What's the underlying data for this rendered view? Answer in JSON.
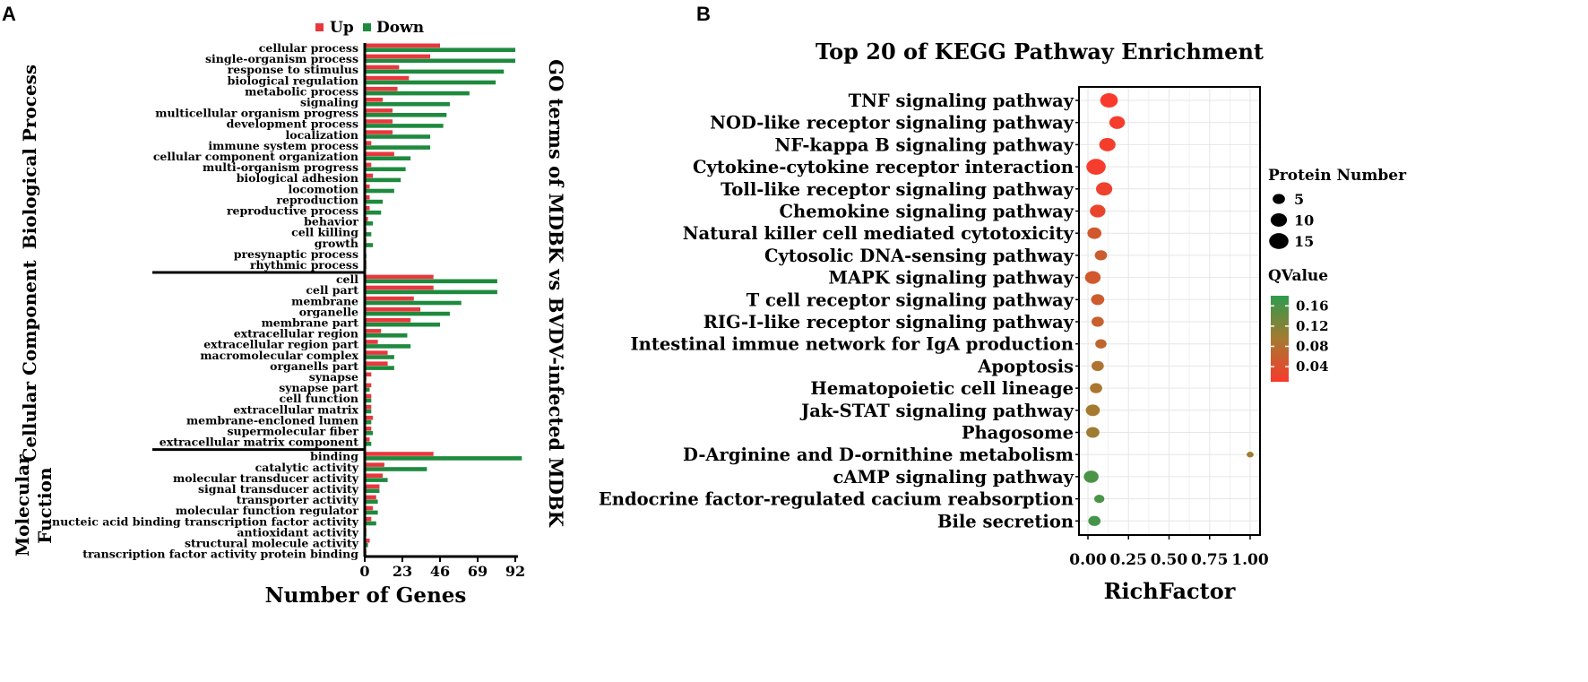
{
  "panel_labels": {
    "a": "A",
    "b": "B"
  },
  "colors": {
    "up": "#e8383d",
    "down": "#1e8a3e",
    "q_low": "#f83a2c",
    "q_mid": "#a57a30",
    "q_high": "#2e9b4e",
    "grid": "#e6e6e6"
  },
  "chart_data": [
    {
      "type": "bar",
      "orientation": "horizontal",
      "title": "GO terms of MDBK vs BVDV-infected MDBK",
      "xlabel": "Number of Genes",
      "xlim": [
        0,
        92
      ],
      "xticks": [
        "0",
        "23",
        "46",
        "69",
        "92"
      ],
      "legend": {
        "up": "Up",
        "down": "Down",
        "position": "top"
      },
      "groups": [
        {
          "name": "Biological Process",
          "categories": [
            "cellular process",
            "single-organism process",
            "response to stimulus",
            "biological regulation",
            "metabolic process",
            "signaling",
            "multicellular organism progress",
            "development process",
            "localization",
            "immune system process",
            "cellular component organization",
            "multi-organism progress",
            "biological adhesion",
            "locomotion",
            "reproduction",
            "reproductive process",
            "behavior",
            "cell killing",
            "growth",
            "presynaptic process",
            "rhythmic process"
          ],
          "up": [
            46,
            40,
            21,
            27,
            20,
            11,
            17,
            17,
            17,
            4,
            18,
            4,
            5,
            3,
            3,
            3,
            2,
            1,
            1,
            0,
            1
          ],
          "down": [
            92,
            92,
            85,
            80,
            64,
            52,
            50,
            48,
            40,
            40,
            28,
            25,
            22,
            18,
            11,
            10,
            5,
            4,
            5,
            1,
            1
          ]
        },
        {
          "name": "Cellular Component",
          "categories": [
            "cell",
            "cell part",
            "membrane",
            "organelle",
            "membrane part",
            "extracellular region",
            "extracellular region part",
            "macromolecular complex",
            "organells part",
            "synapse",
            "synapse part",
            "cell function",
            "extracellular matrix",
            "membrane-encloned lumen",
            "supermolecular fiber",
            "extracellular matrix component"
          ],
          "up": [
            42,
            42,
            30,
            34,
            28,
            10,
            8,
            14,
            14,
            4,
            4,
            4,
            4,
            5,
            4,
            3
          ],
          "down": [
            81,
            81,
            59,
            52,
            46,
            26,
            28,
            18,
            18,
            1,
            3,
            4,
            4,
            4,
            5,
            4
          ]
        },
        {
          "name": "Molecular Fuction",
          "categories": [
            "binding",
            "catalytic activity",
            "molecular transducer activity",
            "signal transducer activity",
            "transporter activity",
            "molecular function regulator",
            "nucteic acid binding transcription factor activity",
            "antioxidant activity",
            "structural molecule activity",
            "transcription factor activity protein binding"
          ],
          "up": [
            42,
            12,
            11,
            9,
            7,
            5,
            4,
            1,
            3,
            1
          ],
          "down": [
            96,
            38,
            14,
            9,
            8,
            8,
            7,
            1,
            2,
            1
          ]
        }
      ]
    },
    {
      "type": "scatter",
      "title": "Top 20 of KEGG Pathway Enrichment",
      "xlabel": "RichFactor",
      "ylabel": "",
      "xlim": [
        0,
        1
      ],
      "xticks": [
        "0.00",
        "0.25",
        "0.50",
        "0.75",
        "1.00"
      ],
      "size_legend": {
        "title": "Protein Number",
        "entries": [
          "5",
          "10",
          "15"
        ],
        "values": [
          5,
          10,
          15
        ]
      },
      "color_legend": {
        "title": "QValue",
        "ticks": [
          "0.16",
          "0.12",
          "0.08",
          "0.04"
        ],
        "tick_values": [
          0.16,
          0.12,
          0.08,
          0.04
        ],
        "range": [
          0.01,
          0.18
        ]
      },
      "points": [
        {
          "pathway": "TNF signaling pathway",
          "rich_factor": 0.13,
          "protein_number": 12,
          "qvalue": 0.01
        },
        {
          "pathway": "NOD-like receptor signaling pathway",
          "rich_factor": 0.18,
          "protein_number": 9,
          "qvalue": 0.012
        },
        {
          "pathway": "NF-kappa B signaling pathway",
          "rich_factor": 0.12,
          "protein_number": 10,
          "qvalue": 0.014
        },
        {
          "pathway": "Cytokine-cytokine receptor interaction",
          "rich_factor": 0.05,
          "protein_number": 15,
          "qvalue": 0.012
        },
        {
          "pathway": "Toll-like receptor signaling pathway",
          "rich_factor": 0.1,
          "protein_number": 10,
          "qvalue": 0.02
        },
        {
          "pathway": "Chemokine signaling pathway",
          "rich_factor": 0.06,
          "protein_number": 9,
          "qvalue": 0.025
        },
        {
          "pathway": "Natural killer cell mediated cytotoxicity",
          "rich_factor": 0.04,
          "protein_number": 7,
          "qvalue": 0.05
        },
        {
          "pathway": "Cytosolic DNA-sensing pathway",
          "rich_factor": 0.08,
          "protein_number": 5,
          "qvalue": 0.055
        },
        {
          "pathway": "MAPK signaling pathway",
          "rich_factor": 0.03,
          "protein_number": 9,
          "qvalue": 0.05
        },
        {
          "pathway": "T cell receptor signaling pathway",
          "rich_factor": 0.06,
          "protein_number": 6,
          "qvalue": 0.055
        },
        {
          "pathway": "RIG-I-like receptor signaling pathway",
          "rich_factor": 0.06,
          "protein_number": 5,
          "qvalue": 0.06
        },
        {
          "pathway": "Intestinal immue network for IgA production",
          "rich_factor": 0.08,
          "protein_number": 4,
          "qvalue": 0.07
        },
        {
          "pathway": "Apoptosis",
          "rich_factor": 0.06,
          "protein_number": 5,
          "qvalue": 0.085
        },
        {
          "pathway": "Hematopoietic cell lineage",
          "rich_factor": 0.05,
          "protein_number": 5,
          "qvalue": 0.09
        },
        {
          "pathway": "Jak-STAT signaling pathway",
          "rich_factor": 0.03,
          "protein_number": 7,
          "qvalue": 0.095
        },
        {
          "pathway": "Phagosome",
          "rich_factor": 0.03,
          "protein_number": 6,
          "qvalue": 0.1
        },
        {
          "pathway": "D-Arginine and D-ornithine metabolism",
          "rich_factor": 1.0,
          "protein_number": 1,
          "qvalue": 0.1
        },
        {
          "pathway": "cAMP signaling pathway",
          "rich_factor": 0.02,
          "protein_number": 8,
          "qvalue": 0.16
        },
        {
          "pathway": "Endocrine factor-regulated cacium reabsorption",
          "rich_factor": 0.07,
          "protein_number": 3,
          "qvalue": 0.16
        },
        {
          "pathway": "Bile secretion",
          "rich_factor": 0.04,
          "protein_number": 5,
          "qvalue": 0.165
        }
      ]
    }
  ]
}
